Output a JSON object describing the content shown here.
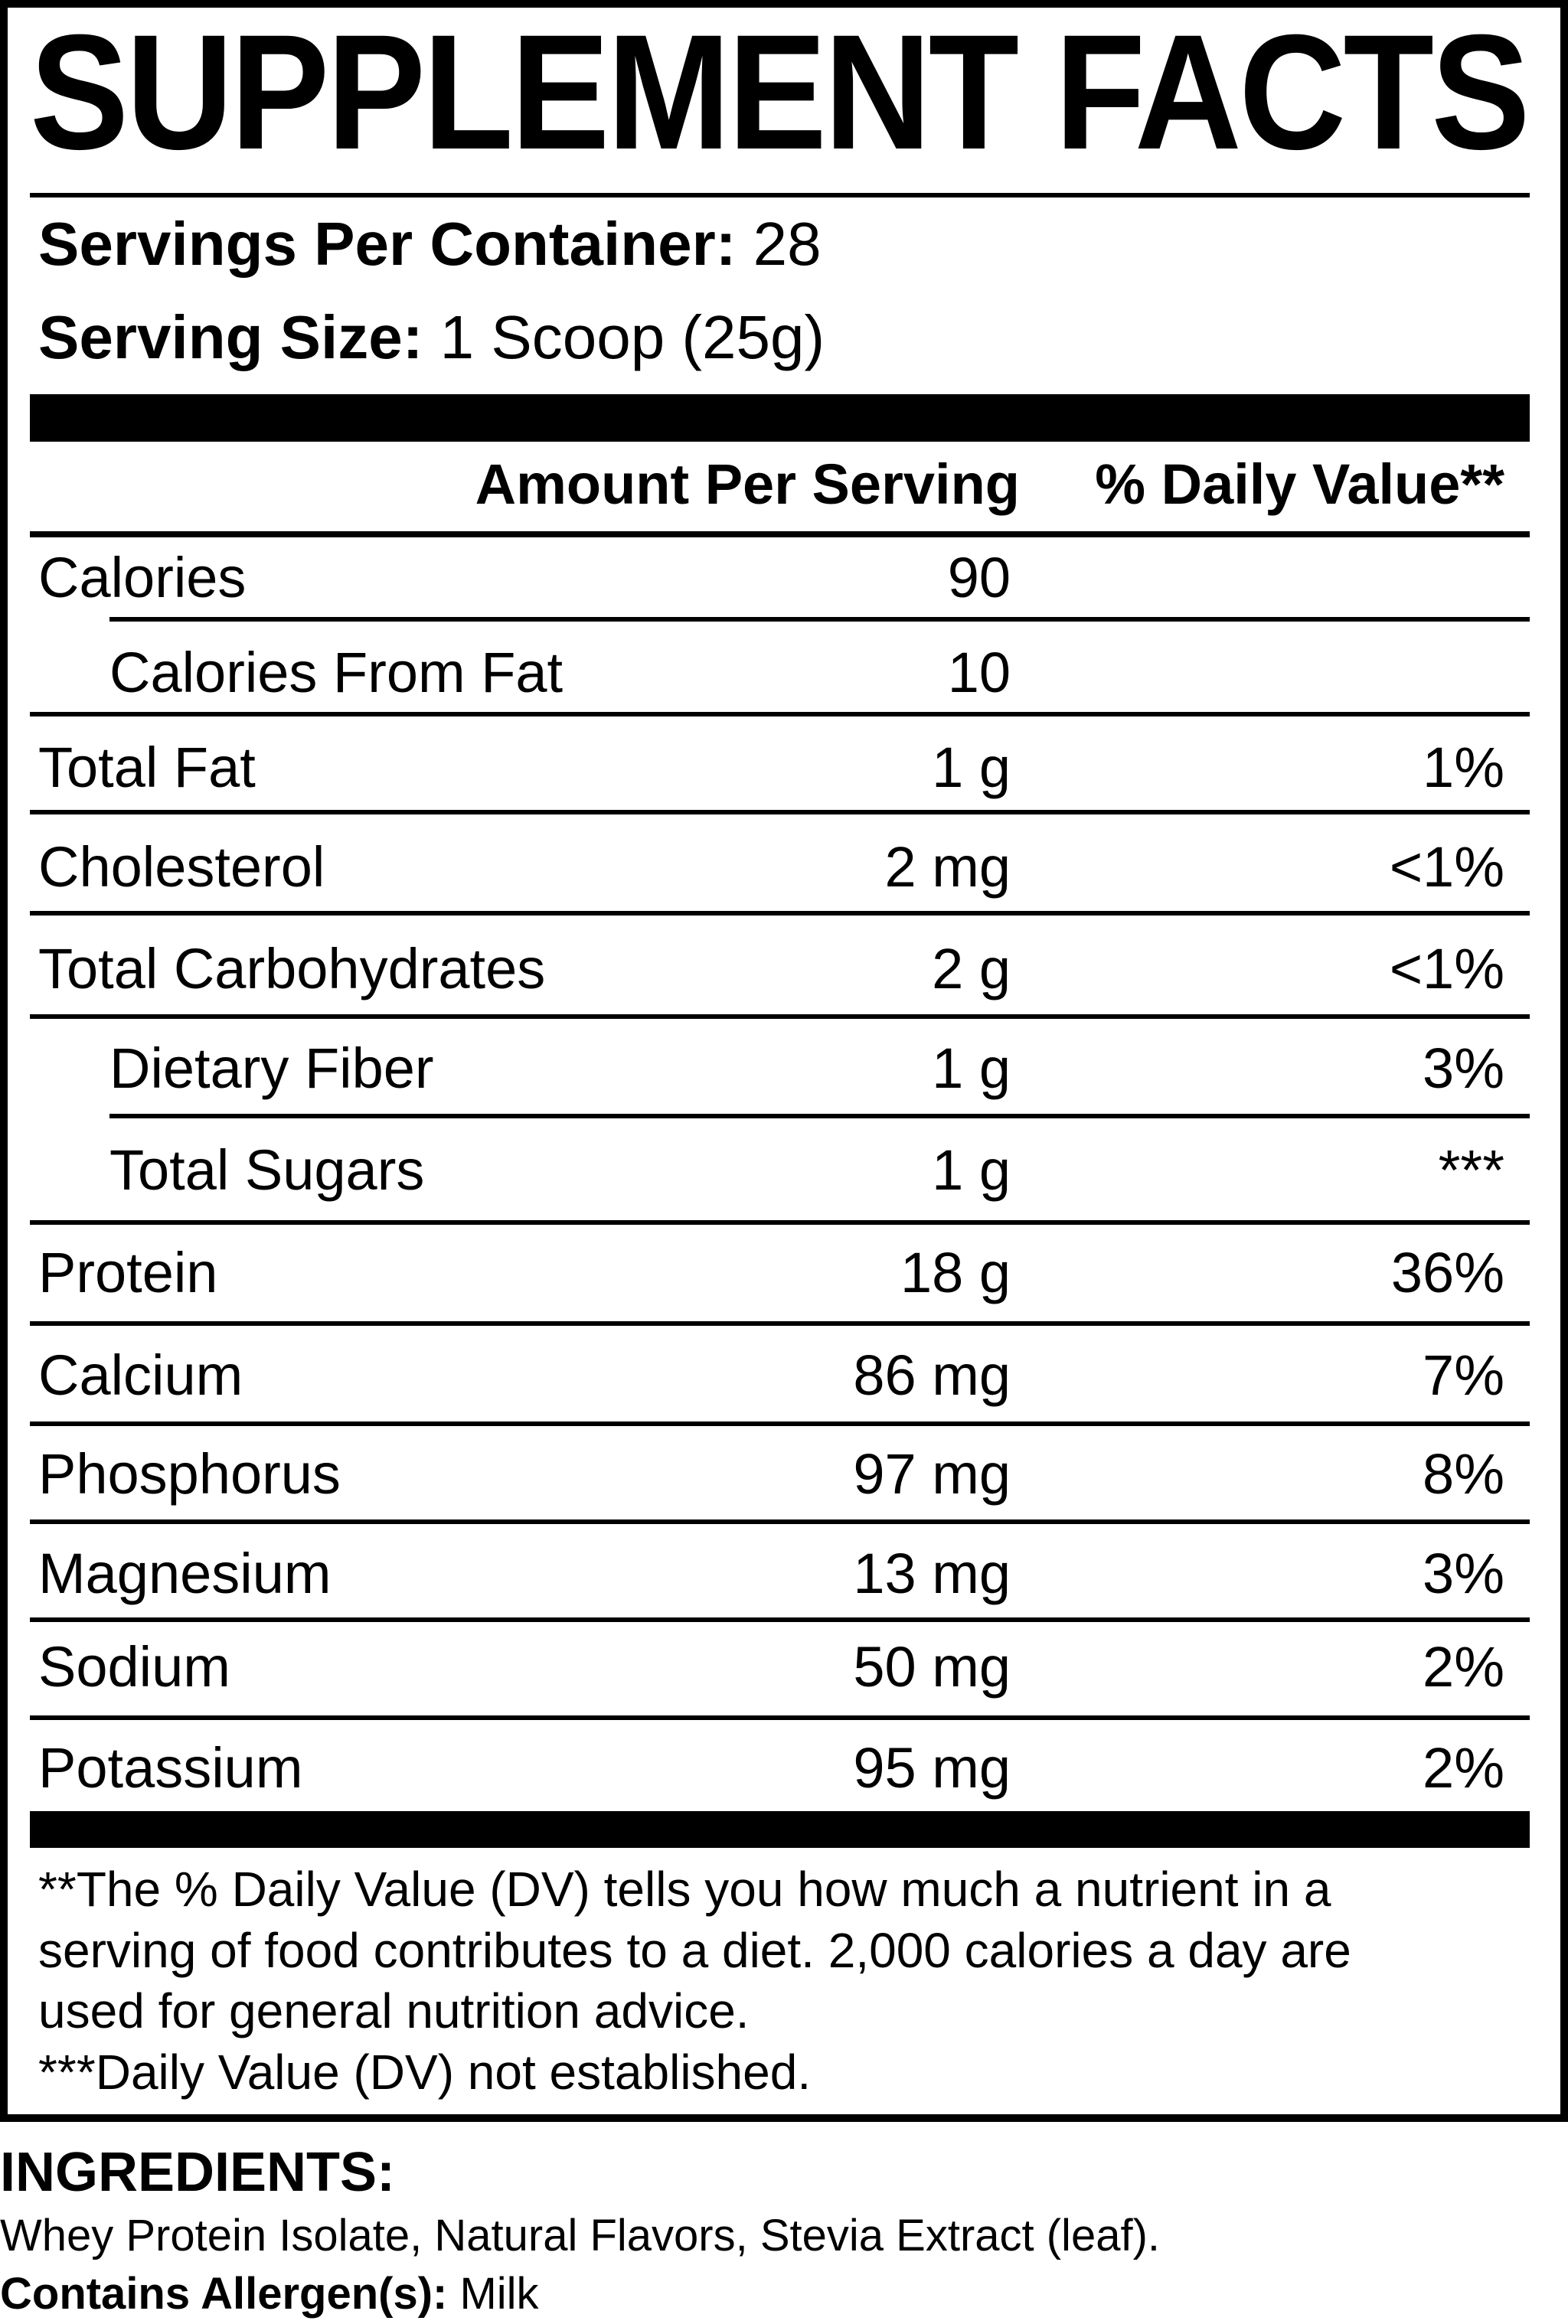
{
  "title": "SUPPLEMENT FACTS",
  "servings": {
    "per_container_label": "Servings Per Container:",
    "per_container_value": "28",
    "size_label": "Serving Size:",
    "size_value": "1 Scoop (25g)"
  },
  "header": {
    "amount": "Amount Per Serving",
    "dv": "% Daily Value**"
  },
  "rows": [
    {
      "label": "Calories",
      "amount": "90",
      "dv": ""
    },
    {
      "label": "Calories From Fat",
      "amount": "10",
      "dv": ""
    },
    {
      "label": "Total Fat",
      "amount": "1 g",
      "dv": "1%"
    },
    {
      "label": "Cholesterol",
      "amount": "2 mg",
      "dv": "<1%"
    },
    {
      "label": "Total Carbohydrates",
      "amount": "2 g",
      "dv": "<1%"
    },
    {
      "label": "Dietary Fiber",
      "amount": "1 g",
      "dv": "3%"
    },
    {
      "label": "Total Sugars",
      "amount": "1 g",
      "dv": "***"
    },
    {
      "label": "Protein",
      "amount": "18 g",
      "dv": "36%"
    },
    {
      "label": "Calcium",
      "amount": "86 mg",
      "dv": "7%"
    },
    {
      "label": "Phosphorus",
      "amount": "97 mg",
      "dv": "8%"
    },
    {
      "label": "Magnesium",
      "amount": "13 mg",
      "dv": "3%"
    },
    {
      "label": "Sodium",
      "amount": "50 mg",
      "dv": "2%"
    },
    {
      "label": "Potassium",
      "amount": "95 mg",
      "dv": "2%"
    }
  ],
  "footnotes": [
    "**The % Daily Value (DV) tells you how much a nutrient in a",
    "serving of food contributes to a diet. 2,000 calories a day are",
    "used for general nutrition advice.",
    "***Daily Value (DV) not established."
  ],
  "ingredients": {
    "heading": "INGREDIENTS:",
    "text": "Whey Protein Isolate, Natural Flavors, Stevia Extract (leaf).",
    "allergen_label": "Contains Allergen(s):",
    "allergen_value": "Milk"
  }
}
